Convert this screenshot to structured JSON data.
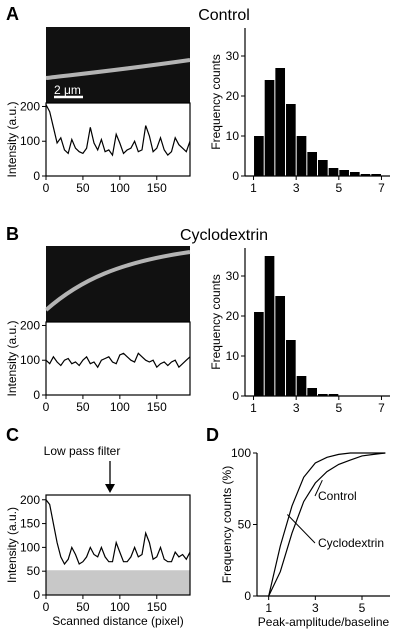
{
  "panels": {
    "A": {
      "letter": "A",
      "title": "Control",
      "scale_bar": "2 μm"
    },
    "B": {
      "letter": "B",
      "title": "Cyclodextrin"
    },
    "C": {
      "letter": "C",
      "annotation": "Low pass filter"
    },
    "D": {
      "letter": "D"
    }
  },
  "chart_data": [
    {
      "type": "line",
      "panel": "A-profile",
      "xlabel": "",
      "ylabel": "Intensity (a.u.)",
      "xlim": [
        0,
        195
      ],
      "ylim": [
        0,
        210
      ],
      "xticks": [
        0,
        50,
        100,
        150
      ],
      "yticks": [
        0,
        100,
        200
      ],
      "x": [
        0,
        5,
        10,
        15,
        20,
        25,
        30,
        35,
        40,
        45,
        50,
        55,
        60,
        65,
        70,
        75,
        80,
        85,
        90,
        95,
        100,
        105,
        110,
        115,
        120,
        125,
        130,
        135,
        140,
        145,
        150,
        155,
        160,
        165,
        170,
        175,
        180,
        185,
        190,
        195
      ],
      "y": [
        205,
        185,
        140,
        95,
        110,
        75,
        65,
        105,
        80,
        70,
        65,
        80,
        140,
        95,
        75,
        105,
        70,
        75,
        60,
        120,
        95,
        65,
        75,
        80,
        100,
        70,
        75,
        145,
        115,
        70,
        80,
        110,
        75,
        60,
        70,
        110,
        90,
        80,
        70,
        100
      ]
    },
    {
      "type": "bar",
      "panel": "A-histogram",
      "xlabel": "",
      "ylabel": "Frequency counts",
      "xlim": [
        0.6,
        7.4
      ],
      "ylim": [
        0,
        37
      ],
      "xticks": [
        1,
        3,
        5,
        7
      ],
      "yticks": [
        0,
        10,
        20,
        30
      ],
      "x": [
        1,
        1.5,
        2,
        2.5,
        3,
        3.5,
        4,
        4.5,
        5,
        5.5,
        6,
        6.5
      ],
      "values": [
        10,
        24,
        27,
        18,
        10,
        6,
        4,
        2,
        1.5,
        1,
        0.5,
        0.5
      ]
    },
    {
      "type": "line",
      "panel": "B-profile",
      "xlabel": "",
      "ylabel": "Intensity (a.u.)",
      "xlim": [
        0,
        195
      ],
      "ylim": [
        0,
        210
      ],
      "xticks": [
        0,
        50,
        100,
        150
      ],
      "yticks": [
        0,
        100,
        200
      ],
      "x": [
        0,
        5,
        10,
        15,
        20,
        25,
        30,
        35,
        40,
        45,
        50,
        55,
        60,
        65,
        70,
        75,
        80,
        85,
        90,
        95,
        100,
        105,
        110,
        115,
        120,
        125,
        130,
        135,
        140,
        145,
        150,
        155,
        160,
        165,
        170,
        175,
        180,
        185,
        190,
        195
      ],
      "y": [
        100,
        90,
        110,
        95,
        85,
        100,
        105,
        90,
        95,
        85,
        100,
        110,
        90,
        95,
        80,
        100,
        105,
        110,
        95,
        90,
        115,
        120,
        110,
        100,
        95,
        120,
        110,
        100,
        95,
        100,
        80,
        90,
        95,
        85,
        95,
        100,
        80,
        90,
        100,
        110
      ]
    },
    {
      "type": "bar",
      "panel": "B-histogram",
      "xlabel": "",
      "ylabel": "Frequency counts",
      "xlim": [
        0.6,
        7.4
      ],
      "ylim": [
        0,
        37
      ],
      "xticks": [
        1,
        3,
        5,
        7
      ],
      "yticks": [
        0,
        10,
        20,
        30
      ],
      "x": [
        1,
        1.5,
        2,
        2.5,
        3,
        3.5,
        4,
        4.5,
        5,
        5.5,
        6,
        6.5
      ],
      "values": [
        21,
        35,
        25,
        14,
        5,
        2,
        0.5,
        0.5,
        0,
        0,
        0,
        0
      ]
    },
    {
      "type": "line",
      "panel": "C",
      "xlabel": "Scanned distance (pixel)",
      "ylabel": "Intensity (a.u.)",
      "xlim": [
        0,
        195
      ],
      "ylim": [
        0,
        210
      ],
      "xticks": [
        0,
        50,
        100,
        150
      ],
      "yticks": [
        0,
        50,
        100,
        150,
        200
      ],
      "x": [
        0,
        5,
        10,
        15,
        20,
        25,
        30,
        35,
        40,
        45,
        50,
        55,
        60,
        65,
        70,
        75,
        80,
        85,
        90,
        95,
        100,
        105,
        110,
        115,
        120,
        125,
        130,
        135,
        140,
        145,
        150,
        155,
        160,
        165,
        170,
        175,
        180,
        185,
        190,
        195
      ],
      "y": [
        200,
        190,
        150,
        110,
        80,
        65,
        75,
        100,
        85,
        65,
        70,
        80,
        100,
        85,
        80,
        100,
        80,
        70,
        70,
        110,
        90,
        70,
        70,
        80,
        100,
        80,
        85,
        130,
        110,
        75,
        80,
        100,
        75,
        70,
        70,
        90,
        80,
        85,
        75,
        90
      ],
      "shaded_band": [
        0,
        52
      ]
    },
    {
      "type": "line",
      "panel": "D",
      "xlabel": "Peak-amplitude/baseline",
      "ylabel": "Frequency counts (%)",
      "xlim": [
        0.5,
        6.2
      ],
      "ylim": [
        0,
        100
      ],
      "xticks": [
        1,
        3,
        5
      ],
      "yticks": [
        0,
        50,
        100
      ],
      "series": [
        {
          "name": "Control",
          "x": [
            1,
            1.5,
            2,
            2.5,
            3,
            3.5,
            4,
            4.5,
            5,
            5.5,
            6
          ],
          "y": [
            0,
            17,
            44,
            66,
            79,
            87,
            92,
            95,
            98,
            99,
            100
          ]
        },
        {
          "name": "Cyclodextrin",
          "x": [
            1,
            1.5,
            2,
            2.5,
            3,
            3.5,
            4,
            4.5,
            5,
            5.5,
            6
          ],
          "y": [
            0,
            35,
            63,
            83,
            93,
            97,
            99,
            100,
            100,
            100,
            100
          ]
        }
      ]
    }
  ]
}
